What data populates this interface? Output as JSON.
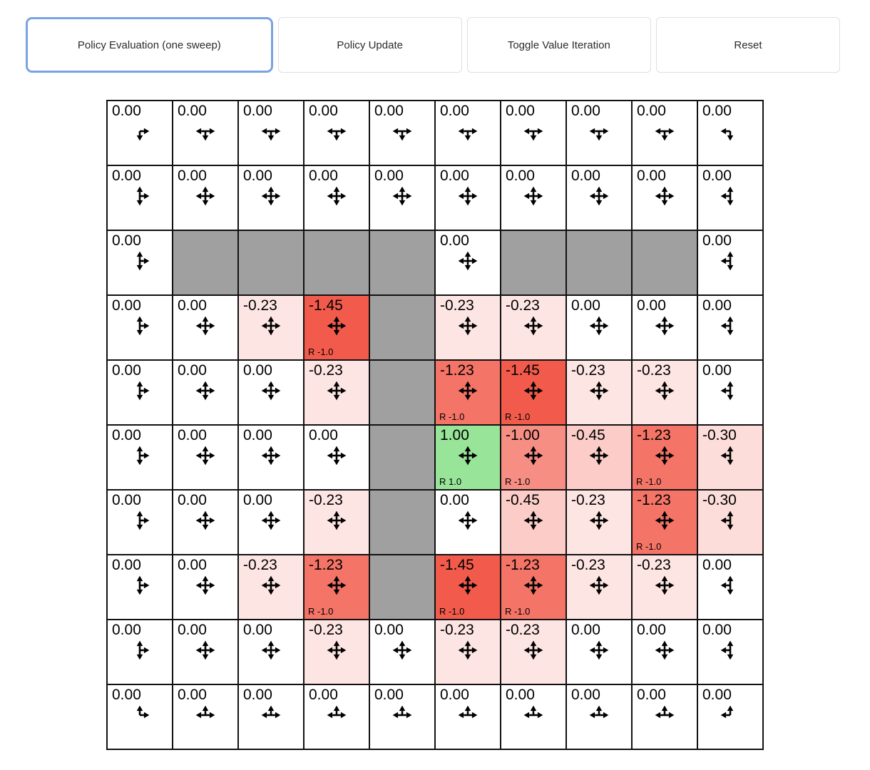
{
  "toolbar": {
    "buttons": [
      {
        "label": "Policy Evaluation (one sweep)",
        "active": true
      },
      {
        "label": "Policy Update",
        "active": false
      },
      {
        "label": "Toggle Value Iteration",
        "active": false
      },
      {
        "label": "Reset",
        "active": false
      }
    ],
    "active_border_color": "#7aa3e2"
  },
  "grid": {
    "rows": 10,
    "cols": 10,
    "colors": {
      "wall": "#a0a0a0",
      "negative_base": "#f25546",
      "positive_base": "#64d764",
      "line": "#111111"
    },
    "value_color_scale_limit": 1.5,
    "cells": [
      [
        {
          "v": "0.00",
          "d": "dr"
        },
        {
          "v": "0.00",
          "d": "ldr"
        },
        {
          "v": "0.00",
          "d": "ldr"
        },
        {
          "v": "0.00",
          "d": "ldr"
        },
        {
          "v": "0.00",
          "d": "ldr"
        },
        {
          "v": "0.00",
          "d": "ldr"
        },
        {
          "v": "0.00",
          "d": "ldr"
        },
        {
          "v": "0.00",
          "d": "ldr"
        },
        {
          "v": "0.00",
          "d": "ldr"
        },
        {
          "v": "0.00",
          "d": "ld"
        }
      ],
      [
        {
          "v": "0.00",
          "d": "udr"
        },
        {
          "v": "0.00",
          "d": "uldr"
        },
        {
          "v": "0.00",
          "d": "uldr"
        },
        {
          "v": "0.00",
          "d": "uldr"
        },
        {
          "v": "0.00",
          "d": "uldr"
        },
        {
          "v": "0.00",
          "d": "uldr"
        },
        {
          "v": "0.00",
          "d": "uldr"
        },
        {
          "v": "0.00",
          "d": "uldr"
        },
        {
          "v": "0.00",
          "d": "uldr"
        },
        {
          "v": "0.00",
          "d": "uld"
        }
      ],
      [
        {
          "v": "0.00",
          "d": "udr"
        },
        {
          "wall": true
        },
        {
          "wall": true
        },
        {
          "wall": true
        },
        {
          "wall": true
        },
        {
          "v": "0.00",
          "d": "uldr"
        },
        {
          "wall": true
        },
        {
          "wall": true
        },
        {
          "wall": true
        },
        {
          "v": "0.00",
          "d": "uld"
        }
      ],
      [
        {
          "v": "0.00",
          "d": "udr"
        },
        {
          "v": "0.00",
          "d": "uldr"
        },
        {
          "v": "-0.23",
          "d": "uldr"
        },
        {
          "v": "-1.45",
          "d": "uldr",
          "r": "R -1.0"
        },
        {
          "wall": true
        },
        {
          "v": "-0.23",
          "d": "uldr"
        },
        {
          "v": "-0.23",
          "d": "uldr"
        },
        {
          "v": "0.00",
          "d": "uldr"
        },
        {
          "v": "0.00",
          "d": "uldr"
        },
        {
          "v": "0.00",
          "d": "uld"
        }
      ],
      [
        {
          "v": "0.00",
          "d": "udr"
        },
        {
          "v": "0.00",
          "d": "uldr"
        },
        {
          "v": "0.00",
          "d": "uldr"
        },
        {
          "v": "-0.23",
          "d": "uldr"
        },
        {
          "wall": true
        },
        {
          "v": "-1.23",
          "d": "uldr",
          "r": "R -1.0"
        },
        {
          "v": "-1.45",
          "d": "uldr",
          "r": "R -1.0"
        },
        {
          "v": "-0.23",
          "d": "uldr"
        },
        {
          "v": "-0.23",
          "d": "uldr"
        },
        {
          "v": "0.00",
          "d": "uld"
        }
      ],
      [
        {
          "v": "0.00",
          "d": "udr"
        },
        {
          "v": "0.00",
          "d": "uldr"
        },
        {
          "v": "0.00",
          "d": "uldr"
        },
        {
          "v": "0.00",
          "d": "uldr"
        },
        {
          "wall": true
        },
        {
          "v": "1.00",
          "d": "uldr",
          "r": "R 1.0"
        },
        {
          "v": "-1.00",
          "d": "uldr",
          "r": "R -1.0"
        },
        {
          "v": "-0.45",
          "d": "uldr"
        },
        {
          "v": "-1.23",
          "d": "uldr",
          "r": "R -1.0"
        },
        {
          "v": "-0.30",
          "d": "uld"
        }
      ],
      [
        {
          "v": "0.00",
          "d": "udr"
        },
        {
          "v": "0.00",
          "d": "uldr"
        },
        {
          "v": "0.00",
          "d": "uldr"
        },
        {
          "v": "-0.23",
          "d": "uldr"
        },
        {
          "wall": true
        },
        {
          "v": "0.00",
          "d": "uldr"
        },
        {
          "v": "-0.45",
          "d": "uldr"
        },
        {
          "v": "-0.23",
          "d": "uldr"
        },
        {
          "v": "-1.23",
          "d": "uldr",
          "r": "R -1.0"
        },
        {
          "v": "-0.30",
          "d": "uld"
        }
      ],
      [
        {
          "v": "0.00",
          "d": "udr"
        },
        {
          "v": "0.00",
          "d": "uldr"
        },
        {
          "v": "-0.23",
          "d": "uldr"
        },
        {
          "v": "-1.23",
          "d": "uldr",
          "r": "R -1.0"
        },
        {
          "wall": true
        },
        {
          "v": "-1.45",
          "d": "uldr",
          "r": "R -1.0"
        },
        {
          "v": "-1.23",
          "d": "uldr",
          "r": "R -1.0"
        },
        {
          "v": "-0.23",
          "d": "uldr"
        },
        {
          "v": "-0.23",
          "d": "uldr"
        },
        {
          "v": "0.00",
          "d": "uld"
        }
      ],
      [
        {
          "v": "0.00",
          "d": "udr"
        },
        {
          "v": "0.00",
          "d": "uldr"
        },
        {
          "v": "0.00",
          "d": "uldr"
        },
        {
          "v": "-0.23",
          "d": "uldr"
        },
        {
          "v": "0.00",
          "d": "uldr"
        },
        {
          "v": "-0.23",
          "d": "uldr"
        },
        {
          "v": "-0.23",
          "d": "uldr"
        },
        {
          "v": "0.00",
          "d": "uldr"
        },
        {
          "v": "0.00",
          "d": "uldr"
        },
        {
          "v": "0.00",
          "d": "uld"
        }
      ],
      [
        {
          "v": "0.00",
          "d": "ur"
        },
        {
          "v": "0.00",
          "d": "ulr"
        },
        {
          "v": "0.00",
          "d": "ulr"
        },
        {
          "v": "0.00",
          "d": "ulr"
        },
        {
          "v": "0.00",
          "d": "ulr"
        },
        {
          "v": "0.00",
          "d": "ulr"
        },
        {
          "v": "0.00",
          "d": "ulr"
        },
        {
          "v": "0.00",
          "d": "ulr"
        },
        {
          "v": "0.00",
          "d": "ulr"
        },
        {
          "v": "0.00",
          "d": "ul"
        }
      ]
    ]
  }
}
